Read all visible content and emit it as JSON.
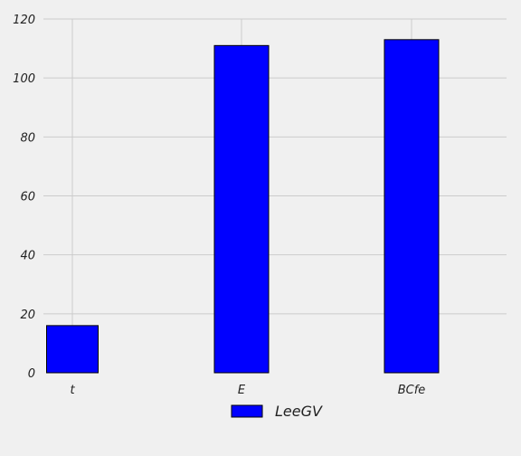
{
  "chart_data": {
    "type": "bar",
    "categories": [
      "t",
      "E",
      "BCfe"
    ],
    "series": [
      {
        "name": "LeeGV",
        "values": [
          16,
          111,
          113
        ],
        "color": "#0000ff"
      }
    ],
    "ylim": [
      0,
      120
    ],
    "yticks": [
      0,
      20,
      40,
      60,
      80,
      100,
      120
    ],
    "grid": true,
    "legend_position": "bottom-center",
    "background": "#f0f0f0",
    "grid_color": "#cbcbcb",
    "edge_color": "#000000"
  }
}
